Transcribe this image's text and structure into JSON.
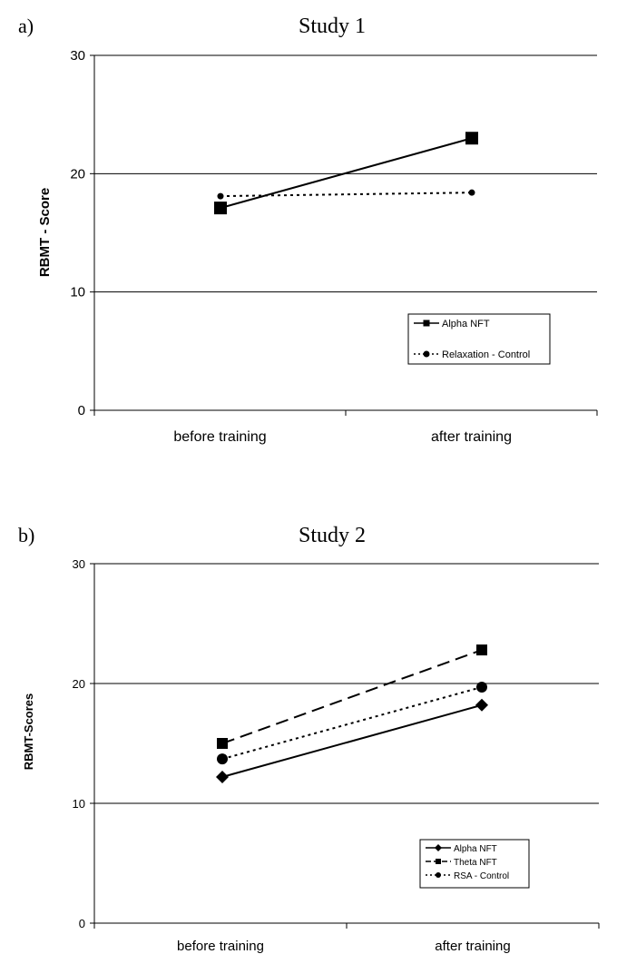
{
  "chart_data": [
    {
      "type": "line",
      "panel_label": "a)",
      "title": "Study 1",
      "ylabel": "RBMT - Score",
      "xlabel": "",
      "categories": [
        "before training",
        "after training"
      ],
      "ylim": [
        0,
        30
      ],
      "yticks": [
        "0",
        "10",
        "20",
        "30"
      ],
      "grid": "horizontal",
      "legend_position": "bottom-right",
      "series": [
        {
          "name": "Alpha NFT",
          "values": [
            17.1,
            23.0
          ],
          "marker": "square",
          "line": "solid",
          "marker_size": "large"
        },
        {
          "name": "Relaxation - Control",
          "values": [
            18.1,
            18.4
          ],
          "marker": "circle",
          "line": "dotted",
          "marker_size": "small"
        }
      ]
    },
    {
      "type": "line",
      "panel_label": "b)",
      "title": "Study 2",
      "ylabel": "RBMT-Scores",
      "xlabel": "",
      "categories": [
        "before training",
        "after training"
      ],
      "ylim": [
        0,
        30
      ],
      "yticks": [
        "0",
        "10",
        "20",
        "30"
      ],
      "grid": "horizontal",
      "legend_position": "bottom-right",
      "series": [
        {
          "name": "Alpha NFT",
          "values": [
            12.2,
            18.2
          ],
          "marker": "diamond",
          "line": "solid",
          "marker_size": "medium"
        },
        {
          "name": "Theta NFT",
          "values": [
            15.0,
            22.8
          ],
          "marker": "square",
          "line": "dashed",
          "marker_size": "medium"
        },
        {
          "name": "RSA - Control",
          "values": [
            13.7,
            19.7
          ],
          "marker": "circle",
          "line": "dotted",
          "marker_size": "medium"
        }
      ]
    }
  ]
}
